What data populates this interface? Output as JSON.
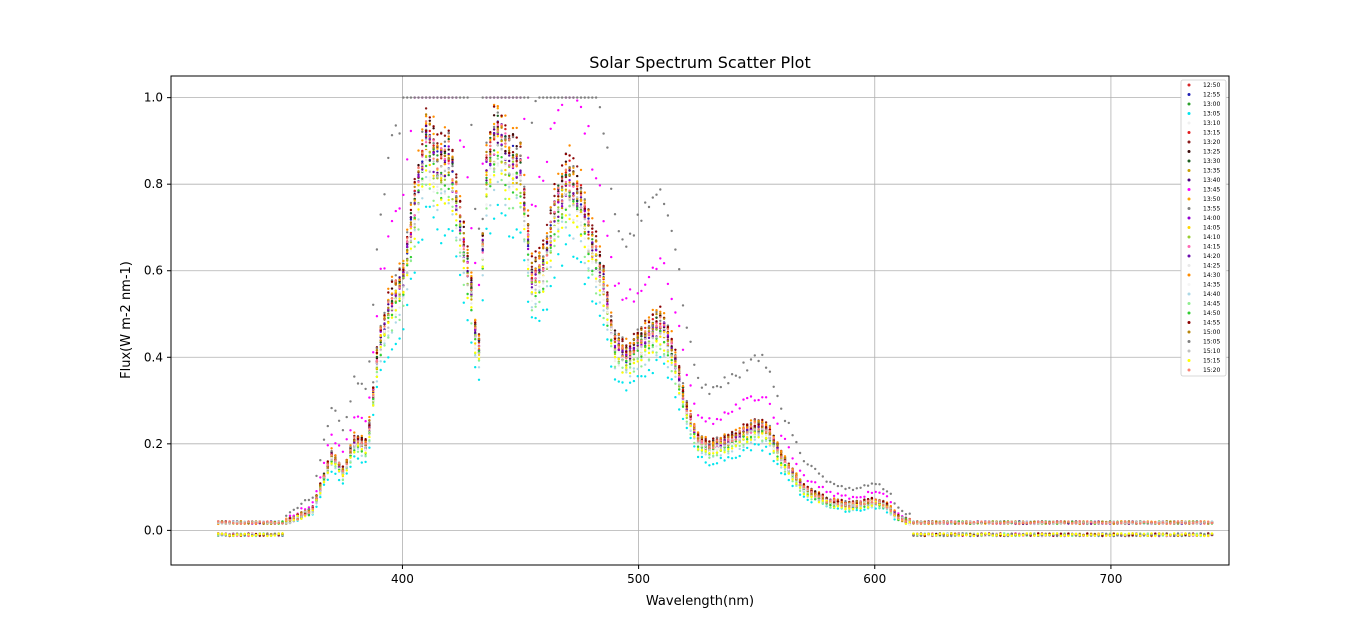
{
  "chart_data": {
    "type": "scatter",
    "title": "Solar Spectrum Scatter Plot",
    "xlabel": "Wavelength(nm)",
    "ylabel": "Flux(W m-2 nm-1)",
    "xlim": [
      302,
      750
    ],
    "ylim": [
      -0.08,
      1.05
    ],
    "x_ticks": [
      400,
      500,
      600,
      700
    ],
    "y_ticks": [
      0.0,
      0.2,
      0.4,
      0.6,
      0.8,
      1.0
    ],
    "x_tick_labels": [
      "400",
      "500",
      "600",
      "700"
    ],
    "y_tick_labels": [
      "0.0",
      "0.2",
      "0.4",
      "0.6",
      "0.8",
      "1.0"
    ],
    "grid": true,
    "legend_position": "top-right",
    "profile_wavelengths": [
      322,
      340,
      350,
      355,
      362,
      370,
      375,
      380,
      385,
      390,
      395,
      400,
      405,
      410,
      415,
      420,
      425,
      430,
      432,
      435,
      440,
      445,
      450,
      455,
      460,
      465,
      470,
      475,
      480,
      485,
      490,
      495,
      500,
      505,
      510,
      515,
      520,
      525,
      530,
      540,
      550,
      555,
      560,
      570,
      580,
      590,
      600,
      605,
      610,
      620,
      630,
      640,
      660,
      680,
      700,
      720,
      744
    ],
    "profile_flux": [
      0.005,
      0.005,
      0.02,
      0.03,
      0.05,
      0.18,
      0.14,
      0.22,
      0.2,
      0.45,
      0.55,
      0.6,
      0.78,
      0.95,
      0.88,
      0.9,
      0.72,
      0.55,
      0.38,
      0.85,
      0.97,
      0.9,
      0.88,
      0.6,
      0.65,
      0.78,
      0.85,
      0.8,
      0.7,
      0.6,
      0.45,
      0.42,
      0.45,
      0.48,
      0.5,
      0.42,
      0.3,
      0.22,
      0.2,
      0.22,
      0.25,
      0.24,
      0.18,
      0.1,
      0.07,
      0.06,
      0.07,
      0.06,
      0.03,
      0.01,
      0.005,
      0.003,
      0.003,
      0.003,
      0.003,
      0.003,
      0.003
    ],
    "series": [
      {
        "name": "12:50",
        "color": "#d62728",
        "scale": 0.97
      },
      {
        "name": "12:55",
        "color": "#1f1fb4",
        "scale": 0.96
      },
      {
        "name": "13:00",
        "color": "#2ca02c",
        "scale": 0.95
      },
      {
        "name": "13:05",
        "color": "#00e5ee",
        "scale": 0.78
      },
      {
        "name": "13:10",
        "color": "#f0f0f0",
        "scale": 0.9
      },
      {
        "name": "13:15",
        "color": "#e31a1c",
        "scale": 0.98
      },
      {
        "name": "13:20",
        "color": "#8b1a1a",
        "scale": 1.0
      },
      {
        "name": "13:25",
        "color": "#3b0a0a",
        "scale": 0.99
      },
      {
        "name": "13:30",
        "color": "#1b5e20",
        "scale": 0.97
      },
      {
        "name": "13:35",
        "color": "#c8a000",
        "scale": 0.94
      },
      {
        "name": "13:40",
        "color": "#4b0082",
        "scale": 0.96
      },
      {
        "name": "13:45",
        "color": "#ff00ff",
        "scale": 1.25
      },
      {
        "name": "13:50",
        "color": "#ffa500",
        "scale": 0.98
      },
      {
        "name": "13:55",
        "color": "#808080",
        "scale": 1.0
      },
      {
        "name": "14:00",
        "color": "#9400d3",
        "scale": 0.95
      },
      {
        "name": "14:05",
        "color": "#ffd700",
        "scale": 0.93
      },
      {
        "name": "14:10",
        "color": "#9acd32",
        "scale": 0.92
      },
      {
        "name": "14:15",
        "color": "#ff69b4",
        "scale": 0.96
      },
      {
        "name": "14:20",
        "color": "#6a0dad",
        "scale": 0.95
      },
      {
        "name": "14:25",
        "color": "#e8e8e8",
        "scale": 0.9
      },
      {
        "name": "14:30",
        "color": "#ff8c00",
        "scale": 1.02
      },
      {
        "name": "14:35",
        "color": "#f5f5f5",
        "scale": 0.9
      },
      {
        "name": "14:40",
        "color": "#add8e6",
        "scale": 0.85
      },
      {
        "name": "14:45",
        "color": "#90ee90",
        "scale": 0.86
      },
      {
        "name": "14:50",
        "color": "#32cd32",
        "scale": 0.9
      },
      {
        "name": "14:55",
        "color": "#8b0000",
        "scale": 1.01
      },
      {
        "name": "15:00",
        "color": "#b8860b",
        "scale": 0.98
      },
      {
        "name": "15:05",
        "color": "#7f7f7f",
        "scale": 1.6
      },
      {
        "name": "15:10",
        "color": "#c0c0c0",
        "scale": 0.92
      },
      {
        "name": "15:15",
        "color": "#ffff00",
        "scale": 0.88
      },
      {
        "name": "15:20",
        "color": "#fa8072",
        "scale": 0.97
      }
    ]
  }
}
